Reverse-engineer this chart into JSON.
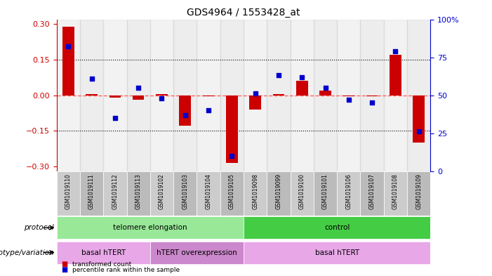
{
  "title": "GDS4964 / 1553428_at",
  "samples": [
    "GSM1019110",
    "GSM1019111",
    "GSM1019112",
    "GSM1019113",
    "GSM1019102",
    "GSM1019103",
    "GSM1019104",
    "GSM1019105",
    "GSM1019098",
    "GSM1019099",
    "GSM1019100",
    "GSM1019101",
    "GSM1019106",
    "GSM1019107",
    "GSM1019108",
    "GSM1019109"
  ],
  "red_values": [
    0.29,
    0.005,
    -0.01,
    -0.02,
    0.005,
    -0.13,
    -0.005,
    -0.285,
    -0.06,
    0.005,
    0.06,
    0.02,
    -0.005,
    -0.005,
    0.17,
    -0.2
  ],
  "blue_pct": [
    82,
    61,
    35,
    55,
    48,
    37,
    40,
    10,
    51,
    63,
    62,
    55,
    47,
    45,
    79,
    26
  ],
  "ylim": [
    -0.32,
    0.32
  ],
  "yticks_red": [
    -0.3,
    -0.15,
    0.0,
    0.15,
    0.3
  ],
  "yticks_blue_pct": [
    0,
    25,
    50,
    75,
    100
  ],
  "hlines_dotted": [
    -0.15,
    0.15
  ],
  "protocol_groups": [
    {
      "label": "telomere elongation",
      "start": 0,
      "end": 8,
      "color": "#98E898"
    },
    {
      "label": "control",
      "start": 8,
      "end": 16,
      "color": "#44CC44"
    }
  ],
  "genotype_groups": [
    {
      "label": "basal hTERT",
      "start": 0,
      "end": 4,
      "color": "#E8A8E8"
    },
    {
      "label": "hTERT overexpression",
      "start": 4,
      "end": 8,
      "color": "#CC88CC"
    },
    {
      "label": "basal hTERT",
      "start": 8,
      "end": 16,
      "color": "#E8A8E8"
    }
  ],
  "red_color": "#CC0000",
  "blue_color": "#0000CC",
  "zero_line_color": "#FF6666",
  "label_protocol": "protocol",
  "label_genotype": "genotype/variation",
  "legend_red": "transformed count",
  "legend_blue": "percentile rank within the sample"
}
